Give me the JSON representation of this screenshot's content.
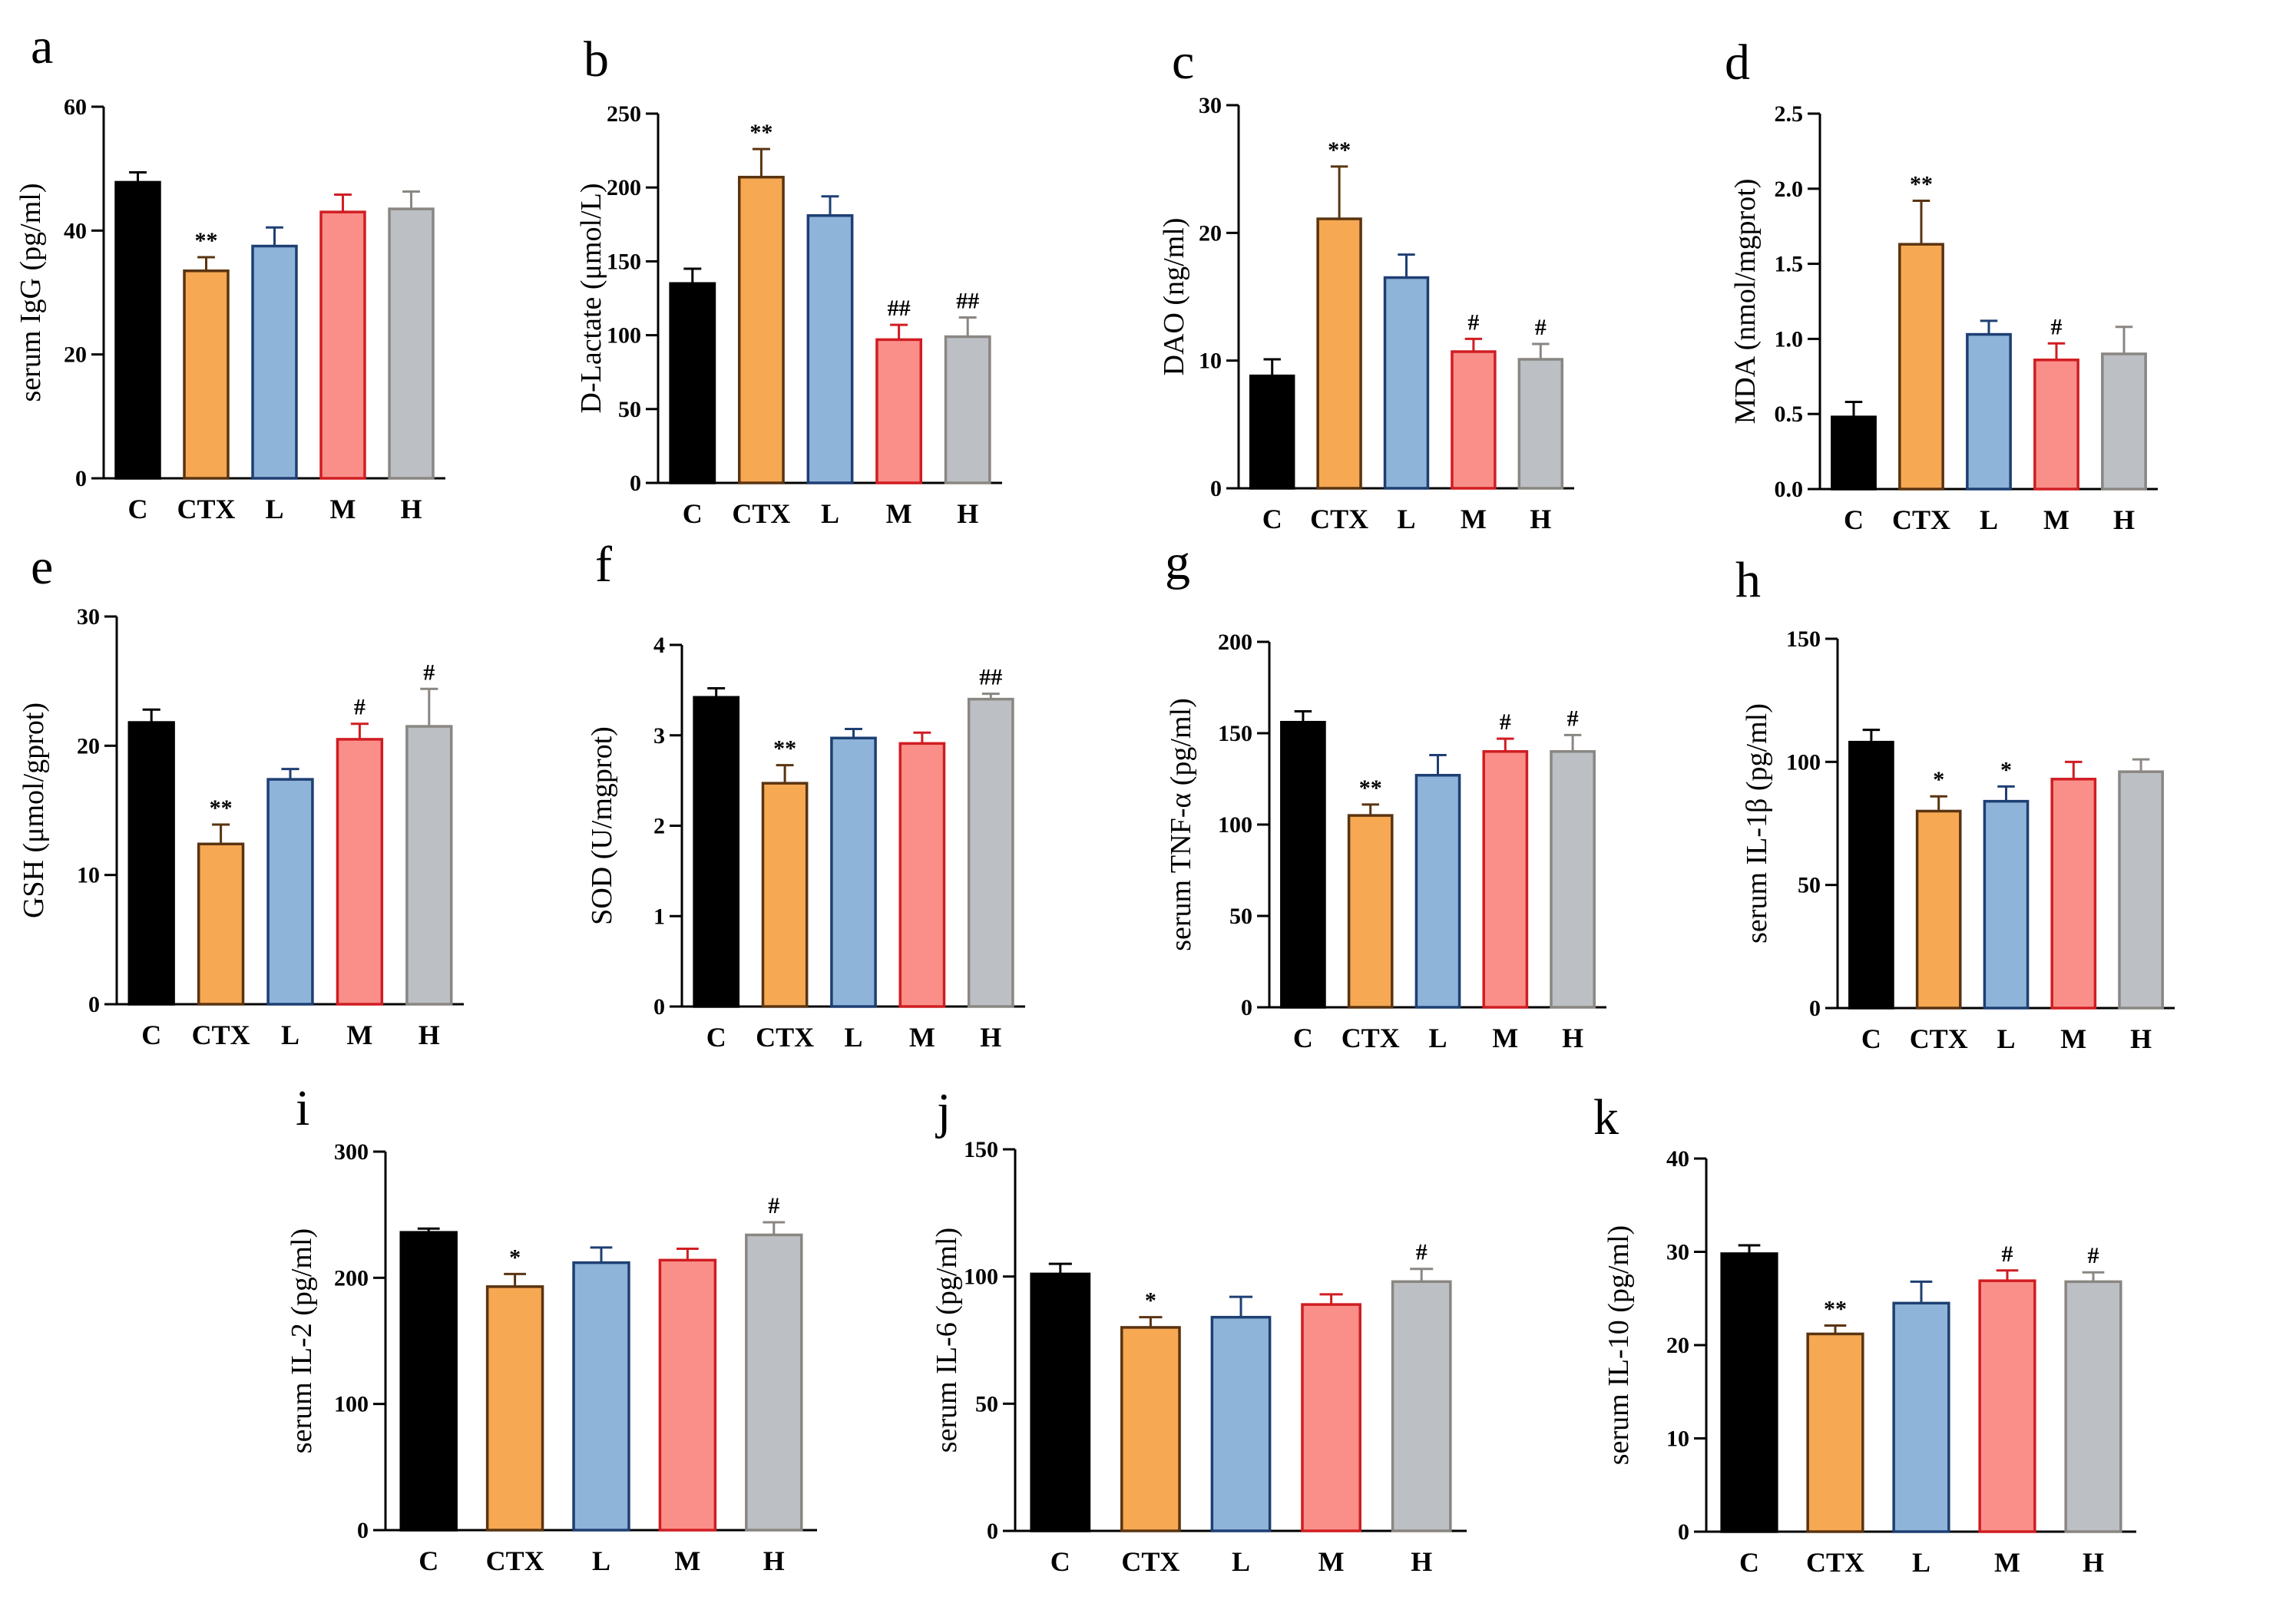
{
  "groups": [
    "C",
    "CTX",
    "L",
    "M",
    "H"
  ],
  "colors": {
    "fills": [
      "#000000",
      "#f6a853",
      "#8fb4d9",
      "#fa8f8a",
      "#bcc0c4"
    ],
    "strokes": [
      "#000000",
      "#5a3411",
      "#1e3f73",
      "#d01d22",
      "#8a8682"
    ]
  },
  "chart_data": [
    {
      "panel": "a",
      "type": "bar",
      "title": "",
      "ylabel": "serum IgG (pg/ml)",
      "ylim": [
        0,
        60
      ],
      "yticks": [
        0,
        20,
        40,
        60
      ],
      "categories": [
        "C",
        "CTX",
        "L",
        "M",
        "H"
      ],
      "values": [
        47.8,
        33.5,
        37.5,
        43,
        43.5
      ],
      "errors": [
        1.6,
        2.2,
        3,
        2.8,
        2.8
      ],
      "annotations": [
        "",
        "**",
        "",
        "",
        ""
      ]
    },
    {
      "panel": "b",
      "type": "bar",
      "title": "",
      "ylabel": "D-Lactate (μmol/L)",
      "ylim": [
        0,
        250
      ],
      "yticks": [
        0,
        50,
        100,
        150,
        200,
        250
      ],
      "categories": [
        "C",
        "CTX",
        "L",
        "M",
        "H"
      ],
      "values": [
        135,
        207,
        181,
        97,
        99
      ],
      "errors": [
        10,
        19,
        13,
        10,
        13
      ],
      "annotations": [
        "",
        "**",
        "",
        "##",
        "##"
      ]
    },
    {
      "panel": "c",
      "type": "bar",
      "title": "",
      "ylabel": "DAO (ng/ml)",
      "ylim": [
        0,
        30
      ],
      "yticks": [
        0,
        10,
        20,
        30
      ],
      "categories": [
        "C",
        "CTX",
        "L",
        "M",
        "H"
      ],
      "values": [
        8.8,
        21.1,
        16.5,
        10.7,
        10.1
      ],
      "errors": [
        1.3,
        4.1,
        1.8,
        1,
        1.2
      ],
      "annotations": [
        "",
        "**",
        "",
        "#",
        "#"
      ]
    },
    {
      "panel": "d",
      "type": "bar",
      "title": "",
      "ylabel": "MDA (nmol/mgprot)",
      "ylim": [
        0,
        2.5
      ],
      "yticks": [
        "0.0",
        "0.5",
        "1.0",
        "1.5",
        "2.0",
        "2.5"
      ],
      "categories": [
        "C",
        "CTX",
        "L",
        "M",
        "H"
      ],
      "values": [
        0.48,
        1.63,
        1.03,
        0.86,
        0.9
      ],
      "errors": [
        0.1,
        0.29,
        0.09,
        0.11,
        0.18
      ],
      "annotations": [
        "",
        "**",
        "",
        "#",
        ""
      ]
    },
    {
      "panel": "e",
      "type": "bar",
      "title": "",
      "ylabel": "GSH (μmol/gprot)",
      "ylim": [
        0,
        30
      ],
      "yticks": [
        0,
        10,
        20,
        30
      ],
      "categories": [
        "C",
        "CTX",
        "L",
        "M",
        "H"
      ],
      "values": [
        21.8,
        12.4,
        17.4,
        20.5,
        21.5
      ],
      "errors": [
        1,
        1.5,
        0.8,
        1.2,
        2.9
      ],
      "annotations": [
        "",
        "**",
        "",
        "#",
        "#"
      ]
    },
    {
      "panel": "f",
      "type": "bar",
      "title": "",
      "ylabel": "SOD (U/mgprot)",
      "ylim": [
        0,
        4
      ],
      "yticks": [
        0,
        1,
        2,
        3,
        4
      ],
      "categories": [
        "C",
        "CTX",
        "L",
        "M",
        "H"
      ],
      "values": [
        3.42,
        2.47,
        2.97,
        2.91,
        3.4
      ],
      "errors": [
        0.1,
        0.2,
        0.1,
        0.12,
        0.06
      ],
      "annotations": [
        "",
        "**",
        "",
        "",
        "##"
      ]
    },
    {
      "panel": "g",
      "type": "bar",
      "title": "",
      "ylabel": "serum TNF-α (pg/ml)",
      "ylim": [
        0,
        200
      ],
      "yticks": [
        0,
        50,
        100,
        150,
        200
      ],
      "categories": [
        "C",
        "CTX",
        "L",
        "M",
        "H"
      ],
      "values": [
        156,
        105,
        127,
        140,
        140
      ],
      "errors": [
        6,
        6,
        11,
        7,
        9
      ],
      "annotations": [
        "",
        "**",
        "",
        "#",
        "#"
      ]
    },
    {
      "panel": "h",
      "type": "bar",
      "title": "",
      "ylabel": "serum IL-1β (pg/ml)",
      "ylim": [
        0,
        150
      ],
      "yticks": [
        0,
        50,
        100,
        150
      ],
      "categories": [
        "C",
        "CTX",
        "L",
        "M",
        "H"
      ],
      "values": [
        108,
        80,
        84,
        93,
        96
      ],
      "errors": [
        5,
        6,
        6,
        7,
        5
      ],
      "annotations": [
        "",
        "*",
        "*",
        "",
        ""
      ]
    },
    {
      "panel": "i",
      "type": "bar",
      "title": "",
      "ylabel": "serum IL-2 (pg/ml)",
      "ylim": [
        0,
        300
      ],
      "yticks": [
        0,
        100,
        200,
        300
      ],
      "categories": [
        "C",
        "CTX",
        "L",
        "M",
        "H"
      ],
      "values": [
        236,
        193,
        212,
        214,
        234
      ],
      "errors": [
        3,
        10,
        12,
        9,
        10
      ],
      "annotations": [
        "",
        "*",
        "",
        "",
        "#"
      ]
    },
    {
      "panel": "j",
      "type": "bar",
      "title": "",
      "ylabel": "serum IL-6 (pg/ml)",
      "ylim": [
        0,
        150
      ],
      "yticks": [
        0,
        50,
        100,
        150
      ],
      "categories": [
        "C",
        "CTX",
        "L",
        "M",
        "H"
      ],
      "values": [
        101,
        80,
        84,
        89,
        98
      ],
      "errors": [
        4,
        4,
        8,
        4,
        5
      ],
      "annotations": [
        "",
        "*",
        "",
        "",
        "#"
      ]
    },
    {
      "panel": "k",
      "type": "bar",
      "title": "",
      "ylabel": "serum IL-10 (pg/ml)",
      "ylim": [
        0,
        40
      ],
      "yticks": [
        0,
        10,
        20,
        30,
        40
      ],
      "categories": [
        "C",
        "CTX",
        "L",
        "M",
        "H"
      ],
      "values": [
        29.8,
        21.2,
        24.5,
        26.9,
        26.8
      ],
      "errors": [
        0.9,
        0.9,
        2.3,
        1.1,
        1
      ],
      "annotations": [
        "",
        "**",
        "",
        "#",
        "#"
      ]
    }
  ]
}
